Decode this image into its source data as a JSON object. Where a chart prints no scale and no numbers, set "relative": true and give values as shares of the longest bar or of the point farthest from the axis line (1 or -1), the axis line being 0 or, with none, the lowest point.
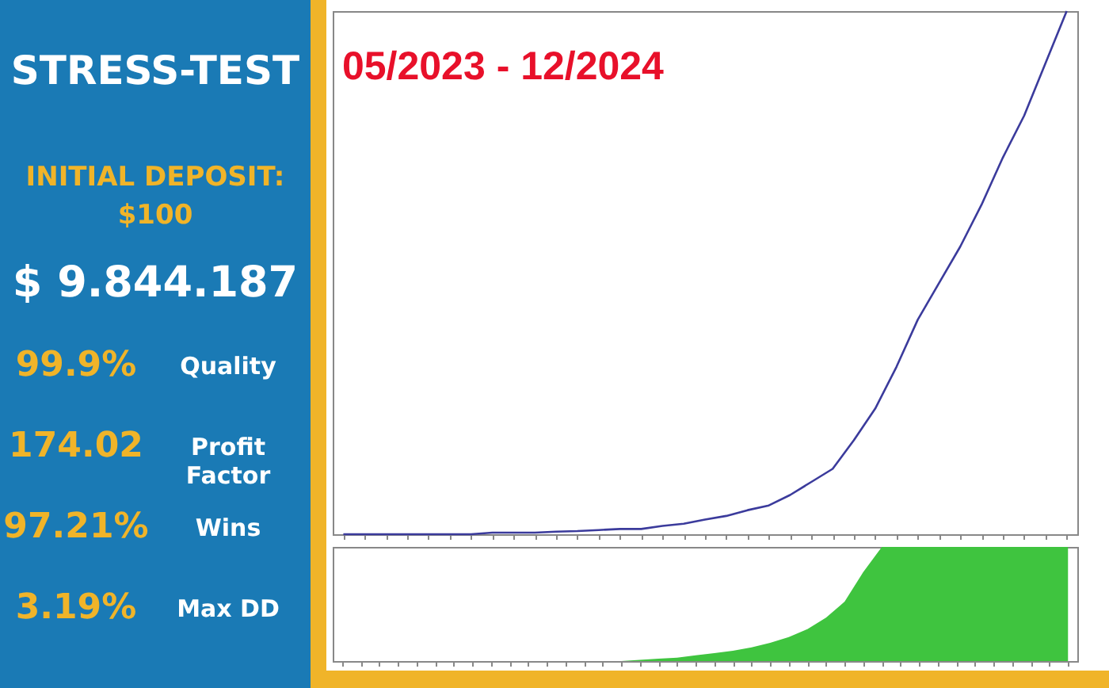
{
  "chart_data": [
    {
      "type": "other",
      "title": "STRESS-TEST",
      "annotations": [
        "INITIAL DEPOSIT:",
        "$100",
        "$ 9.844.187",
        "99.9%",
        "Quality",
        "174.02",
        "Profit Factor",
        "97.21%",
        "Wins",
        "3.19%",
        "Max DD"
      ]
    },
    {
      "type": "line",
      "title": "05/2023 - 12/2024",
      "relative": true,
      "tick_labels": false,
      "categories": [
        null,
        null,
        null,
        null,
        null,
        null,
        null,
        null,
        null,
        null,
        null,
        null,
        null,
        null,
        null,
        null,
        null,
        null,
        null,
        null,
        null,
        null,
        null,
        null,
        null,
        null,
        null,
        null,
        null,
        null,
        null,
        null,
        null,
        null,
        null
      ],
      "series": [
        {
          "color": "#3b3b9c",
          "values": [
            0,
            0,
            0,
            0,
            0,
            0,
            0,
            0.003,
            0.003,
            0.003,
            0.005,
            0.006,
            0.008,
            0.01,
            0.01,
            0.016,
            0.02,
            0.028,
            0.035,
            0.046,
            0.055,
            0.075,
            0.1,
            0.125,
            0.18,
            0.24,
            0.32,
            0.41,
            0.48,
            0.55,
            0.63,
            0.72,
            0.8,
            0.9,
            1
          ]
        }
      ]
    },
    {
      "type": "area",
      "relative": true,
      "tick_labels": false,
      "categories": [
        null,
        null,
        null,
        null,
        null,
        null,
        null,
        null,
        null,
        null,
        null,
        null,
        null,
        null,
        null,
        null,
        null,
        null,
        null,
        null,
        null,
        null,
        null,
        null,
        null,
        null,
        null,
        null,
        null,
        null,
        null,
        null,
        null,
        null,
        null,
        null,
        null,
        null,
        null,
        null
      ],
      "series": [
        {
          "color": "#3fc43f",
          "values": [
            0,
            0,
            0,
            0,
            0,
            0,
            0,
            0,
            0,
            0,
            0,
            0,
            0,
            0,
            0,
            0,
            0.01,
            0.02,
            0.03,
            0.05,
            0.07,
            0.09,
            0.12,
            0.16,
            0.21,
            0.28,
            0.38,
            0.52,
            0.78,
            1,
            1,
            1,
            1,
            1,
            1,
            1,
            1,
            1,
            1,
            1
          ]
        }
      ]
    }
  ]
}
